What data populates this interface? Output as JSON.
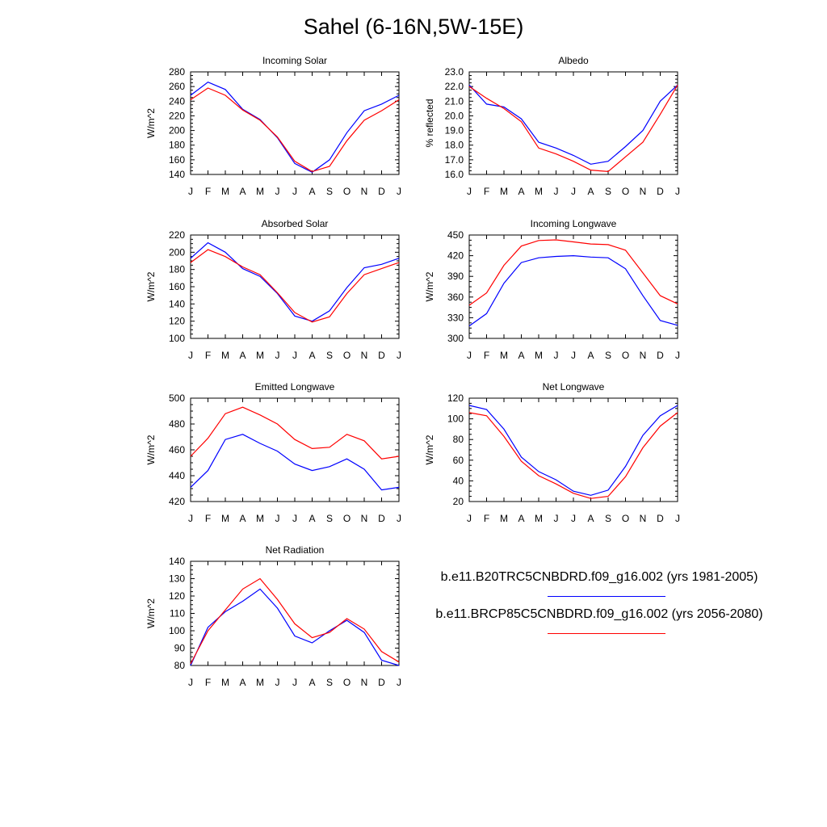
{
  "title": "Sahel (6-16N,5W-15E)",
  "colors": {
    "run1": "#0000ff",
    "run2": "#ff0000",
    "axis": "#000000"
  },
  "legend": [
    {
      "label": "b.e11.B20TRC5CNBDRD.f09_g16.002 (yrs 1981-2005)",
      "color": "#0000ff"
    },
    {
      "label": "b.e11.BRCP85C5CNBDRD.f09_g16.002 (yrs 2056-2080)",
      "color": "#ff0000"
    }
  ],
  "chart_data": [
    {
      "type": "line",
      "title": "Incoming Solar",
      "ylabel": "W/m^2",
      "x": [
        "J",
        "F",
        "M",
        "A",
        "M",
        "J",
        "J",
        "A",
        "S",
        "O",
        "N",
        "D",
        "J"
      ],
      "ylim": [
        140,
        280
      ],
      "yticks": [
        140,
        160,
        180,
        200,
        220,
        240,
        260,
        280
      ],
      "ytick_labels": [
        "140",
        "160",
        "180",
        "200",
        "220",
        "240",
        "260",
        "280"
      ],
      "series": [
        {
          "name": "1981-2005",
          "color": "#0000ff",
          "values": [
            248,
            266,
            256,
            229,
            215,
            190,
            155,
            143,
            160,
            197,
            227,
            236,
            248
          ]
        },
        {
          "name": "2056-2080",
          "color": "#ff0000",
          "values": [
            242,
            258,
            248,
            228,
            214,
            191,
            158,
            144,
            151,
            186,
            214,
            227,
            242
          ]
        }
      ]
    },
    {
      "type": "line",
      "title": "Albedo",
      "ylabel": "% reflected",
      "x": [
        "J",
        "F",
        "M",
        "A",
        "M",
        "J",
        "J",
        "A",
        "S",
        "O",
        "N",
        "D",
        "J"
      ],
      "ylim": [
        16,
        23
      ],
      "yticks": [
        16,
        17,
        18,
        19,
        20,
        21,
        22,
        23
      ],
      "ytick_labels": [
        "16.0",
        "17.0",
        "18.0",
        "19.0",
        "20.0",
        "21.0",
        "22.0",
        "23.0"
      ],
      "series": [
        {
          "name": "1981-2005",
          "color": "#0000ff",
          "values": [
            22.1,
            20.8,
            20.6,
            19.8,
            18.2,
            17.8,
            17.3,
            16.7,
            16.9,
            17.9,
            19.0,
            21.0,
            22.1
          ]
        },
        {
          "name": "2056-2080",
          "color": "#ff0000",
          "values": [
            22.0,
            21.2,
            20.5,
            19.6,
            17.8,
            17.4,
            16.9,
            16.3,
            16.2,
            17.2,
            18.2,
            20.1,
            22.1
          ]
        }
      ]
    },
    {
      "type": "line",
      "title": "Absorbed Solar",
      "ylabel": "W/m^2",
      "x": [
        "J",
        "F",
        "M",
        "A",
        "M",
        "J",
        "J",
        "A",
        "S",
        "O",
        "N",
        "D",
        "J"
      ],
      "ylim": [
        100,
        220
      ],
      "yticks": [
        100,
        120,
        140,
        160,
        180,
        200,
        220
      ],
      "ytick_labels": [
        "100",
        "120",
        "140",
        "160",
        "180",
        "200",
        "220"
      ],
      "series": [
        {
          "name": "1981-2005",
          "color": "#0000ff",
          "values": [
            193,
            211,
            200,
            181,
            172,
            152,
            126,
            120,
            132,
            159,
            182,
            186,
            193
          ]
        },
        {
          "name": "2056-2080",
          "color": "#ff0000",
          "values": [
            188,
            203,
            195,
            183,
            174,
            153,
            130,
            119,
            125,
            152,
            174,
            181,
            188
          ]
        }
      ]
    },
    {
      "type": "line",
      "title": "Incoming Longwave",
      "ylabel": "W/m^2",
      "x": [
        "J",
        "F",
        "M",
        "A",
        "M",
        "J",
        "J",
        "A",
        "S",
        "O",
        "N",
        "D",
        "J"
      ],
      "ylim": [
        300,
        450
      ],
      "yticks": [
        300,
        330,
        360,
        390,
        420,
        450
      ],
      "ytick_labels": [
        "300",
        "330",
        "360",
        "390",
        "420",
        "450"
      ],
      "series": [
        {
          "name": "1981-2005",
          "color": "#0000ff",
          "values": [
            318,
            336,
            380,
            410,
            417,
            419,
            420,
            418,
            417,
            401,
            362,
            326,
            319
          ]
        },
        {
          "name": "2056-2080",
          "color": "#ff0000",
          "values": [
            348,
            366,
            406,
            434,
            442,
            443,
            440,
            437,
            436,
            428,
            395,
            362,
            350
          ]
        }
      ]
    },
    {
      "type": "line",
      "title": "Emitted Longwave",
      "ylabel": "W/m^2",
      "x": [
        "J",
        "F",
        "M",
        "A",
        "M",
        "J",
        "J",
        "A",
        "S",
        "O",
        "N",
        "D",
        "J"
      ],
      "ylim": [
        420,
        500
      ],
      "yticks": [
        420,
        440,
        460,
        480,
        500
      ],
      "ytick_labels": [
        "420",
        "440",
        "460",
        "480",
        "500"
      ],
      "series": [
        {
          "name": "1981-2005",
          "color": "#0000ff",
          "values": [
            431,
            444,
            468,
            472,
            465,
            459,
            449,
            444,
            447,
            453,
            445,
            429,
            431
          ]
        },
        {
          "name": "2056-2080",
          "color": "#ff0000",
          "values": [
            455,
            469,
            488,
            493,
            487,
            480,
            468,
            461,
            462,
            472,
            467,
            453,
            455
          ]
        }
      ]
    },
    {
      "type": "line",
      "title": "Net Longwave",
      "ylabel": "W/m^2",
      "x": [
        "J",
        "F",
        "M",
        "A",
        "M",
        "J",
        "J",
        "A",
        "S",
        "O",
        "N",
        "D",
        "J"
      ],
      "ylim": [
        20,
        120
      ],
      "yticks": [
        20,
        40,
        60,
        80,
        100,
        120
      ],
      "ytick_labels": [
        "20",
        "40",
        "60",
        "80",
        "100",
        "120"
      ],
      "series": [
        {
          "name": "1981-2005",
          "color": "#0000ff",
          "values": [
            113,
            109,
            90,
            63,
            49,
            41,
            30,
            26,
            31,
            54,
            84,
            103,
            113
          ]
        },
        {
          "name": "2056-2080",
          "color": "#ff0000",
          "values": [
            106,
            103,
            83,
            59,
            45,
            37,
            28,
            23,
            25,
            44,
            72,
            93,
            106
          ]
        }
      ]
    },
    {
      "type": "line",
      "title": "Net Radiation",
      "ylabel": "W/m^2",
      "x": [
        "J",
        "F",
        "M",
        "A",
        "M",
        "J",
        "J",
        "A",
        "S",
        "O",
        "N",
        "D",
        "J"
      ],
      "ylim": [
        80,
        140
      ],
      "yticks": [
        80,
        90,
        100,
        110,
        120,
        130,
        140
      ],
      "ytick_labels": [
        "80",
        "90",
        "100",
        "110",
        "120",
        "130",
        "140"
      ],
      "series": [
        {
          "name": "1981-2005",
          "color": "#0000ff",
          "values": [
            80,
            102,
            111,
            117,
            124,
            113,
            97,
            93,
            100,
            106,
            99,
            83,
            80
          ]
        },
        {
          "name": "2056-2080",
          "color": "#ff0000",
          "values": [
            81,
            100,
            112,
            124,
            130,
            118,
            104,
            96,
            99,
            107,
            101,
            88,
            82
          ]
        }
      ]
    }
  ]
}
